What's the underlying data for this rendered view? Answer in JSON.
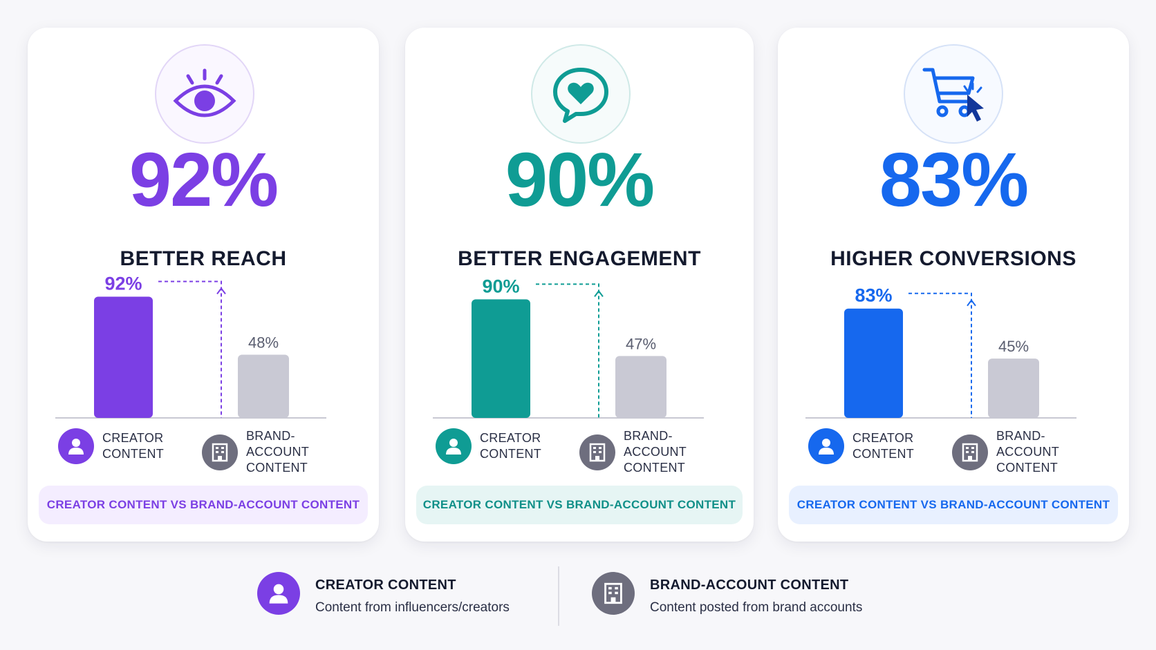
{
  "colors": {
    "reach": "#7b3fe4",
    "engagement": "#0f9c94",
    "conversions": "#1668ee",
    "brand_bar": "#c9c9d4",
    "brand_icon": "#6e6e7e"
  },
  "cards": [
    {
      "key": "reach",
      "big_pct": "92%",
      "label": "BETTER REACH",
      "icon": "eye-icon",
      "creator_label": "CREATOR\nCONTENT",
      "brand_label": "BRAND-ACCOUNT\nCONTENT",
      "pill": "CREATOR CONTENT VS BRAND-ACCOUNT CONTENT"
    },
    {
      "key": "engagement",
      "big_pct": "90%",
      "label": "BETTER ENGAGEMENT",
      "icon": "heart-chat-bubble-icon",
      "creator_label": "CREATOR\nCONTENT",
      "brand_label": "BRAND-ACCOUNT\nCONTENT",
      "pill": "CREATOR CONTENT VS BRAND-ACCOUNT CONTENT"
    },
    {
      "key": "conversions",
      "big_pct": "83%",
      "label": "HIGHER CONVERSIONS",
      "icon": "cart-cursor-icon",
      "creator_label": "CREATOR\nCONTENT",
      "brand_label": "BRAND-ACCOUNT\nCONTENT",
      "pill": "CREATOR CONTENT VS BRAND-ACCOUNT CONTENT"
    }
  ],
  "chart_data": [
    {
      "type": "bar",
      "title": "BETTER REACH",
      "categories": [
        "CREATOR CONTENT",
        "BRAND-ACCOUNT CONTENT"
      ],
      "values": [
        92,
        48
      ],
      "value_labels": [
        "92%",
        "48%"
      ],
      "ylim": [
        0,
        100
      ],
      "grid": false
    },
    {
      "type": "bar",
      "title": "BETTER ENGAGEMENT",
      "categories": [
        "CREATOR CONTENT",
        "BRAND-ACCOUNT CONTENT"
      ],
      "values": [
        90,
        47
      ],
      "value_labels": [
        "90%",
        "47%"
      ],
      "ylim": [
        0,
        100
      ],
      "grid": false
    },
    {
      "type": "bar",
      "title": "HIGHER CONVERSIONS",
      "categories": [
        "CREATOR CONTENT",
        "BRAND-ACCOUNT CONTENT"
      ],
      "values": [
        83,
        45
      ],
      "value_labels": [
        "83%",
        "45%"
      ],
      "ylim": [
        0,
        100
      ],
      "grid": false
    }
  ],
  "footer": {
    "creator_title": "CREATOR CONTENT",
    "creator_desc": "Content from influencers/creators",
    "brand_title": "BRAND-ACCOUNT CONTENT",
    "brand_desc": "Content posted from brand accounts"
  }
}
